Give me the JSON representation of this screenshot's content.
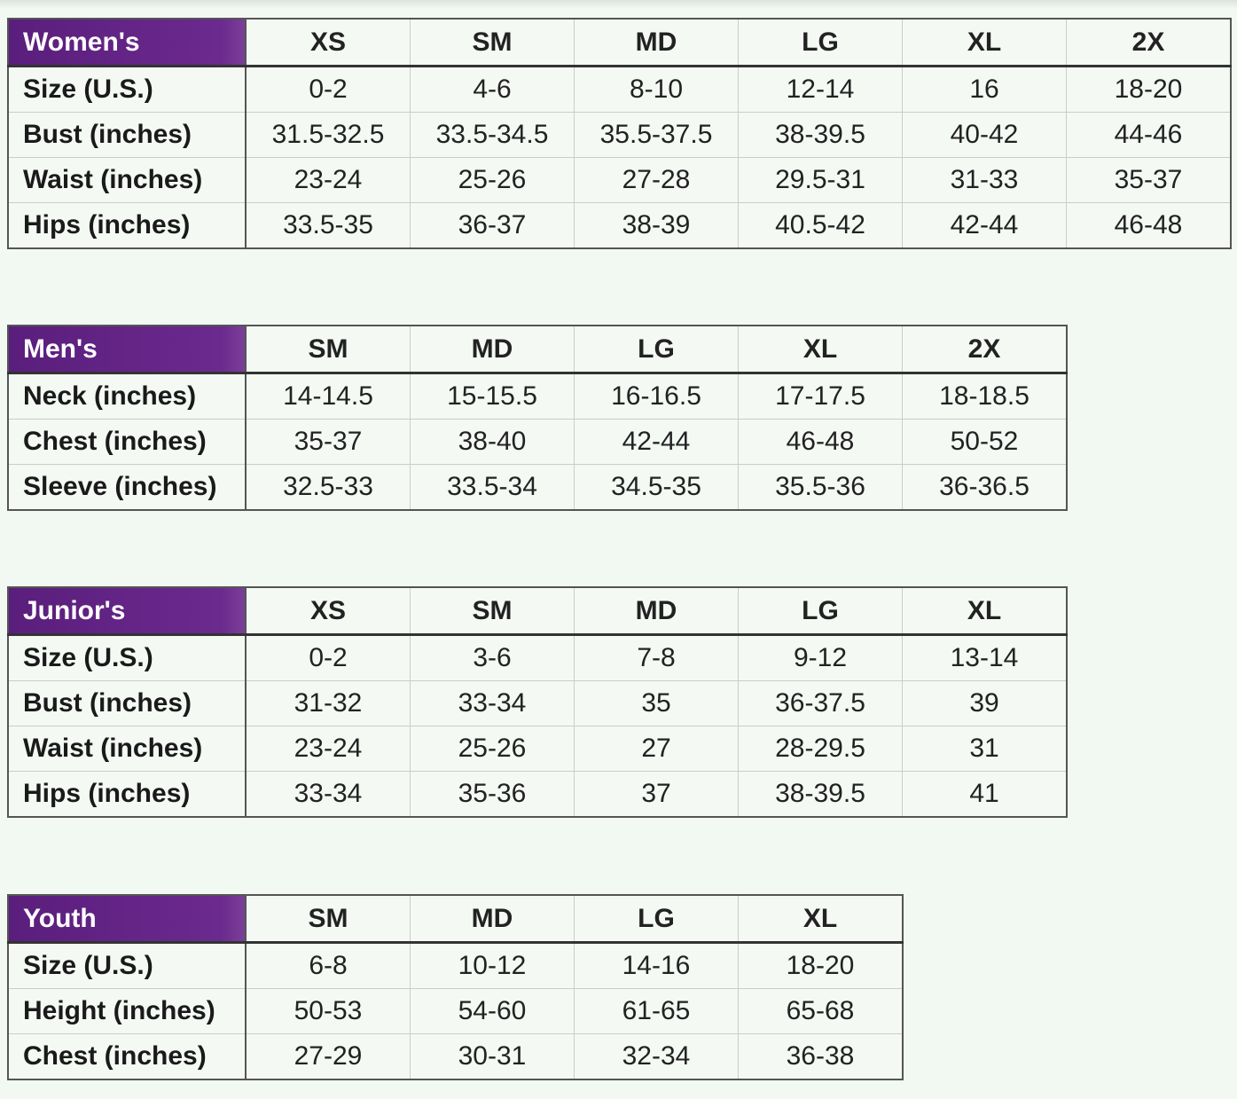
{
  "tables": [
    {
      "title": "Women's",
      "columns": [
        "XS",
        "SM",
        "MD",
        "LG",
        "XL",
        "2X"
      ],
      "rows": [
        [
          "Size (U.S.)",
          "0-2",
          "4-6",
          "8-10",
          "12-14",
          "16",
          "18-20"
        ],
        [
          "Bust (inches)",
          "31.5-32.5",
          "33.5-34.5",
          "35.5-37.5",
          "38-39.5",
          "40-42",
          "44-46"
        ],
        [
          "Waist (inches)",
          "23-24",
          "25-26",
          "27-28",
          "29.5-31",
          "31-33",
          "35-37"
        ],
        [
          "Hips (inches)",
          "33.5-35",
          "36-37",
          "38-39",
          "40.5-42",
          "42-44",
          "46-48"
        ]
      ]
    },
    {
      "title": "Men's",
      "columns": [
        "SM",
        "MD",
        "LG",
        "XL",
        "2X"
      ],
      "rows": [
        [
          "Neck (inches)",
          "14-14.5",
          "15-15.5",
          "16-16.5",
          "17-17.5",
          "18-18.5"
        ],
        [
          "Chest (inches)",
          "35-37",
          "38-40",
          "42-44",
          "46-48",
          "50-52"
        ],
        [
          "Sleeve (inches)",
          "32.5-33",
          "33.5-34",
          "34.5-35",
          "35.5-36",
          "36-36.5"
        ]
      ]
    },
    {
      "title": "Junior's",
      "columns": [
        "XS",
        "SM",
        "MD",
        "LG",
        "XL"
      ],
      "rows": [
        [
          "Size (U.S.)",
          "0-2",
          "3-6",
          "7-8",
          "9-12",
          "13-14"
        ],
        [
          "Bust (inches)",
          "31-32",
          "33-34",
          "35",
          "36-37.5",
          "39"
        ],
        [
          "Waist (inches)",
          "23-24",
          "25-26",
          "27",
          "28-29.5",
          "31"
        ],
        [
          "Hips (inches)",
          "33-34",
          "35-36",
          "37",
          "38-39.5",
          "41"
        ]
      ]
    },
    {
      "title": "Youth",
      "columns": [
        "SM",
        "MD",
        "LG",
        "XL"
      ],
      "rows": [
        [
          "Size (U.S.)",
          "6-8",
          "10-12",
          "14-16",
          "18-20"
        ],
        [
          "Height (inches)",
          "50-53",
          "54-60",
          "61-65",
          "65-68"
        ],
        [
          "Chest (inches)",
          "27-29",
          "30-31",
          "32-34",
          "36-38"
        ]
      ]
    }
  ]
}
